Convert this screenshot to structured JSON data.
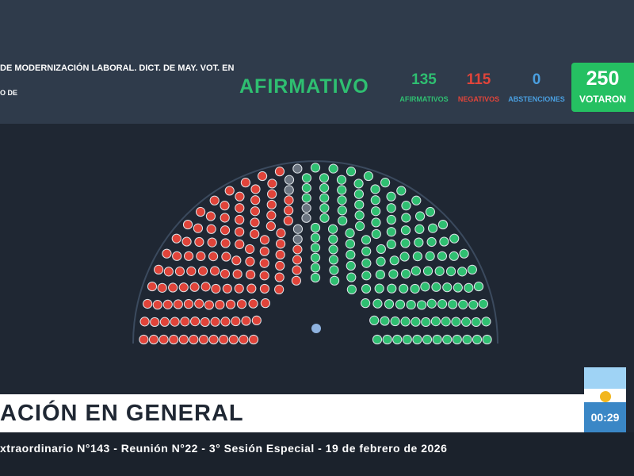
{
  "header": {
    "title_lines": [
      "DE MODERNIZACIÓN LABORAL. DICT. DE MAY. VOT. EN",
      "O DE"
    ],
    "result": "AFIRMATIVO",
    "counts": [
      {
        "value": 135,
        "label": "AFIRMATIVOS",
        "color": "#2fbf71"
      },
      {
        "value": 115,
        "label": "NEGATIVOS",
        "color": "#e0443a"
      },
      {
        "value": 0,
        "label": "ABSTENCIONES",
        "color": "#4a9fe0"
      }
    ],
    "total": {
      "value": 250,
      "label": "VOTARON"
    }
  },
  "banner": {
    "title": "ACIÓN EN GENERAL",
    "timer": "00:29",
    "subtitle": "xtraordinario N°143 - Reunión N°22 - 3° Sesión Especial - 19 de febrero de 2026"
  }
}
